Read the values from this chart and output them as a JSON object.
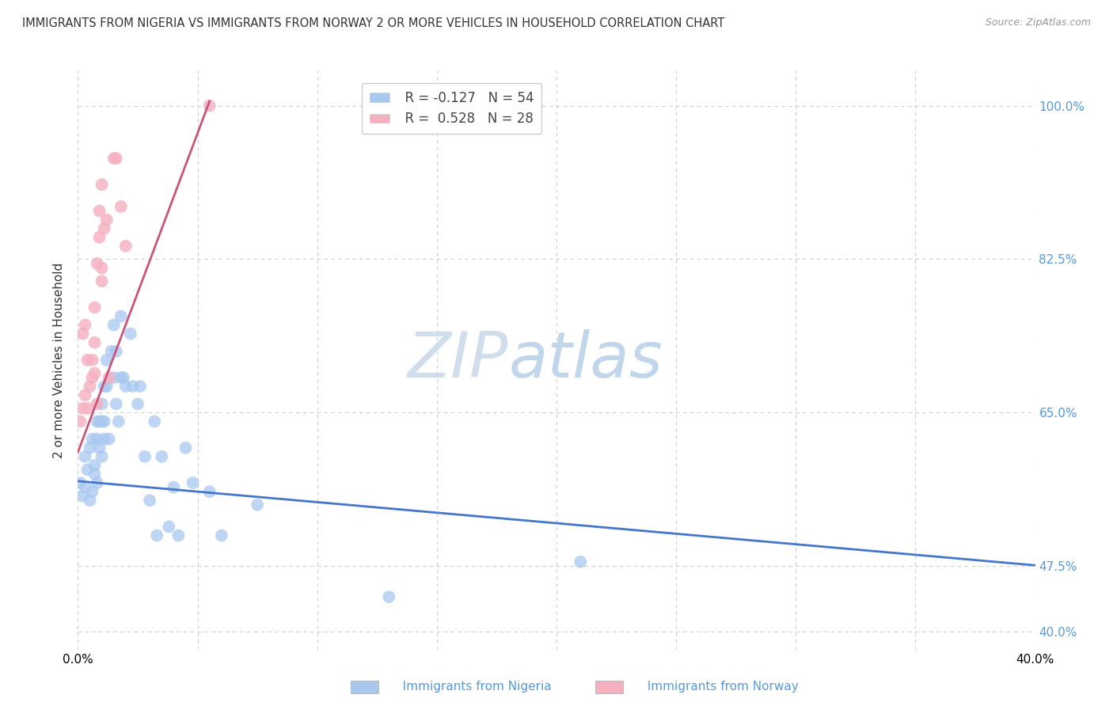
{
  "title": "IMMIGRANTS FROM NIGERIA VS IMMIGRANTS FROM NORWAY 2 OR MORE VEHICLES IN HOUSEHOLD CORRELATION CHART",
  "source": "Source: ZipAtlas.com",
  "ylabel": "2 or more Vehicles in Household",
  "legend_blue_r": "R = -0.127",
  "legend_blue_n": "N = 54",
  "legend_pink_r": "R =  0.528",
  "legend_pink_n": "N = 28",
  "blue_color": "#a8c8f0",
  "pink_color": "#f5b0c0",
  "blue_line_color": "#4477cc",
  "pink_line_color": "#cc5577",
  "watermark_zip": "ZIP",
  "watermark_atlas": "atlas",
  "xmin": 0.0,
  "xmax": 0.4,
  "ymin": 0.38,
  "ymax": 1.04,
  "ytick_vals": [
    0.4,
    0.475,
    0.65,
    0.825,
    1.0
  ],
  "ytick_labels": [
    "40.0%",
    "47.5%",
    "65.0%",
    "82.5%",
    "100.0%"
  ],
  "xtick_vals": [
    0.0,
    0.05,
    0.1,
    0.15,
    0.2,
    0.25,
    0.3,
    0.35,
    0.4
  ],
  "xtick_show": [
    "0.0%",
    "",
    "",
    "",
    "",
    "",
    "",
    "",
    "40.0%"
  ],
  "nigeria_x": [
    0.001,
    0.002,
    0.003,
    0.003,
    0.004,
    0.005,
    0.005,
    0.006,
    0.006,
    0.007,
    0.007,
    0.008,
    0.008,
    0.008,
    0.009,
    0.009,
    0.01,
    0.01,
    0.01,
    0.011,
    0.011,
    0.011,
    0.012,
    0.012,
    0.013,
    0.014,
    0.015,
    0.015,
    0.016,
    0.016,
    0.017,
    0.018,
    0.018,
    0.019,
    0.02,
    0.022,
    0.023,
    0.025,
    0.026,
    0.028,
    0.03,
    0.032,
    0.033,
    0.035,
    0.038,
    0.04,
    0.042,
    0.045,
    0.048,
    0.055,
    0.06,
    0.075,
    0.13,
    0.21
  ],
  "nigeria_y": [
    0.57,
    0.555,
    0.565,
    0.6,
    0.585,
    0.55,
    0.61,
    0.56,
    0.62,
    0.58,
    0.59,
    0.64,
    0.62,
    0.57,
    0.61,
    0.64,
    0.6,
    0.64,
    0.66,
    0.68,
    0.64,
    0.62,
    0.71,
    0.68,
    0.62,
    0.72,
    0.75,
    0.69,
    0.72,
    0.66,
    0.64,
    0.76,
    0.69,
    0.69,
    0.68,
    0.74,
    0.68,
    0.66,
    0.68,
    0.6,
    0.55,
    0.64,
    0.51,
    0.6,
    0.52,
    0.565,
    0.51,
    0.61,
    0.57,
    0.56,
    0.51,
    0.545,
    0.44,
    0.48
  ],
  "norway_x": [
    0.001,
    0.002,
    0.002,
    0.003,
    0.003,
    0.004,
    0.004,
    0.005,
    0.006,
    0.006,
    0.007,
    0.007,
    0.007,
    0.008,
    0.008,
    0.009,
    0.009,
    0.01,
    0.01,
    0.01,
    0.011,
    0.012,
    0.013,
    0.015,
    0.016,
    0.018,
    0.02,
    0.055
  ],
  "norway_y": [
    0.64,
    0.655,
    0.74,
    0.67,
    0.75,
    0.655,
    0.71,
    0.68,
    0.69,
    0.71,
    0.695,
    0.73,
    0.77,
    0.66,
    0.82,
    0.85,
    0.88,
    0.815,
    0.8,
    0.91,
    0.86,
    0.87,
    0.69,
    0.94,
    0.94,
    0.885,
    0.84,
    1.0
  ],
  "blue_line_x0": 0.0,
  "blue_line_x1": 0.4,
  "blue_line_y0": 0.572,
  "blue_line_y1": 0.476,
  "pink_line_x0": 0.0,
  "pink_line_x1": 0.055,
  "pink_line_y0": 0.605,
  "pink_line_y1": 1.005
}
